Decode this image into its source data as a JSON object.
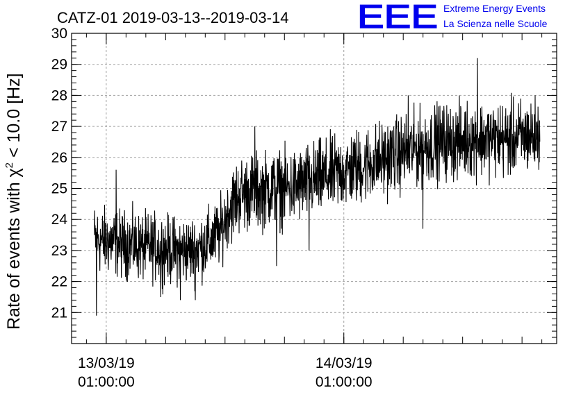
{
  "chart_data": {
    "type": "line",
    "title": "CATZ-01 2019-03-13--2019-03-14",
    "ylabel_main": "Rate of events with ",
    "ylabel_symbol": "χ",
    "ylabel_sup": "2",
    "ylabel_tail": " < 10.0 [Hz]",
    "xlabel": "",
    "ylim": [
      20,
      30
    ],
    "y_ticks": [
      21,
      22,
      23,
      24,
      25,
      26,
      27,
      28,
      29,
      30
    ],
    "x_axis_unit": "hours from 2019-03-13 00:00",
    "xlim_hours": [
      -2.5,
      46.5
    ],
    "x_tick_labels": [
      {
        "hour": 1,
        "date": "13/03/19",
        "time": "01:00:00"
      },
      {
        "hour": 25,
        "date": "14/03/19",
        "time": "01:00:00"
      }
    ],
    "grid": true,
    "series": [
      {
        "color": "#000000",
        "x_hours": [
          -0.2,
          0.5,
          1.5,
          2.5,
          3.5,
          4.5,
          5.5,
          6.5,
          7.5,
          8.5,
          9.5,
          10.5,
          11.5,
          12.5,
          13.5,
          14.5,
          15.5,
          16.5,
          17.5,
          18.5,
          19.5,
          20.5,
          21.5,
          22.5,
          23.5,
          24.5,
          25.5,
          26.5,
          27.5,
          28.5,
          29.5,
          30.5,
          31.5,
          32.5,
          33.5,
          34.5,
          35.5,
          36.5,
          37.5,
          38.5,
          39.5,
          40.5,
          41.5,
          42.5,
          43.5,
          44.5,
          40.5
        ],
        "mean": [
          23.4,
          23.3,
          23.3,
          23.2,
          23.2,
          23.1,
          23.1,
          23.1,
          23.0,
          23.0,
          23.0,
          23.1,
          23.3,
          23.6,
          24.4,
          24.8,
          24.9,
          24.9,
          25.0,
          25.0,
          25.0,
          25.1,
          25.2,
          25.3,
          25.4,
          25.5,
          25.6,
          25.7,
          25.8,
          25.9,
          26.0,
          26.1,
          26.2,
          26.3,
          26.4,
          26.5,
          26.5,
          26.5,
          26.6,
          26.6,
          26.6,
          26.6,
          26.6,
          26.6,
          26.7,
          26.7,
          26.6
        ],
        "spikes": [
          {
            "hour": 0.0,
            "value": 20.9
          },
          {
            "hour": 2.0,
            "value": 25.6
          },
          {
            "hour": 6.5,
            "value": 21.5
          },
          {
            "hour": 8.5,
            "value": 21.4
          },
          {
            "hour": 10.0,
            "value": 21.4
          },
          {
            "hour": 16.0,
            "value": 27.0
          },
          {
            "hour": 18.2,
            "value": 22.5
          },
          {
            "hour": 21.5,
            "value": 23.0
          },
          {
            "hour": 31.5,
            "value": 28.0
          },
          {
            "hour": 33.0,
            "value": 23.7
          },
          {
            "hour": 38.5,
            "value": 29.2
          }
        ]
      }
    ]
  },
  "logo": {
    "mark": "EEE",
    "line1": "Extreme Energy Events",
    "line2": "La Scienza nelle Scuole",
    "color": "#0000ee"
  }
}
